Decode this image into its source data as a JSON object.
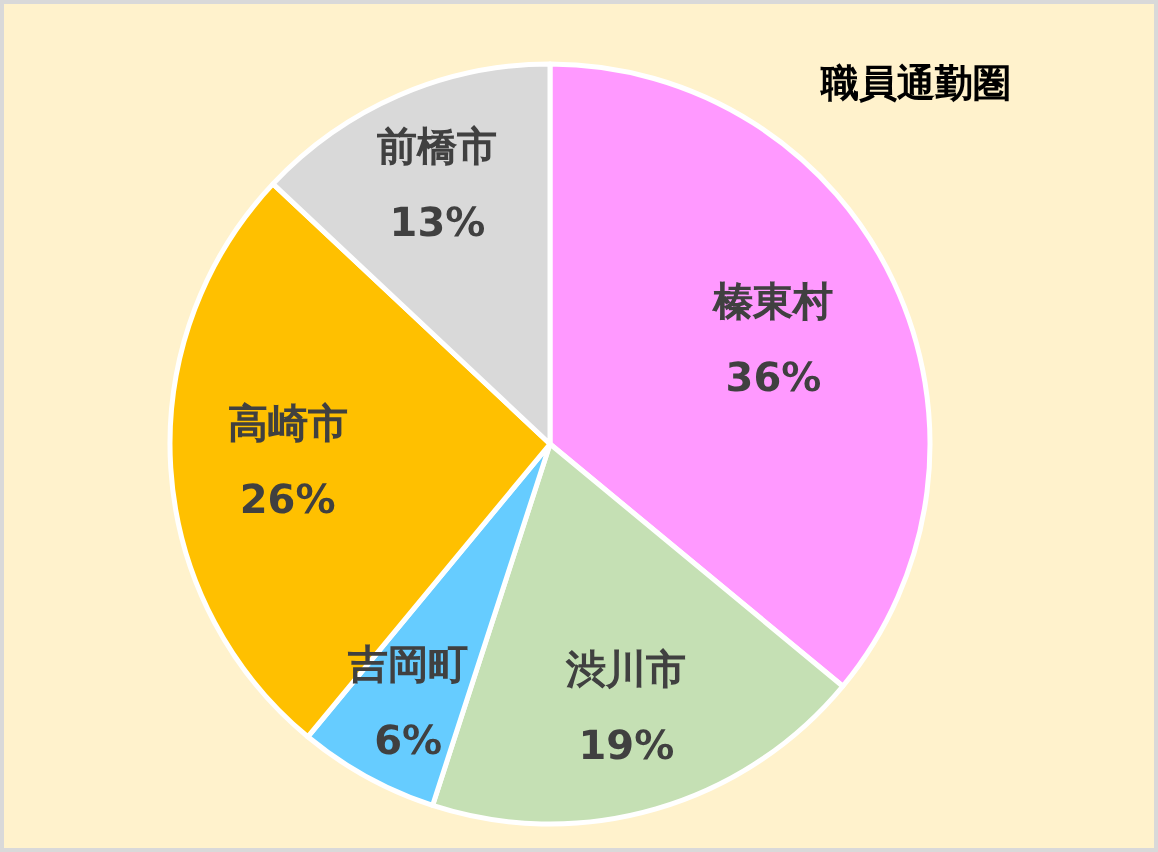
{
  "chart_data": {
    "type": "pie",
    "title": "職員通勤圏",
    "categories": [
      "榛東村",
      "渋川市",
      "吉岡町",
      "高崎市",
      "前橋市"
    ],
    "values": [
      36,
      19,
      6,
      26,
      13
    ],
    "colors": [
      "#ff99ff",
      "#c5e0b4",
      "#66ccff",
      "#ffc000",
      "#d9d9d9"
    ],
    "value_labels": [
      "36%",
      "19%",
      "6%",
      "26%",
      "13%"
    ]
  }
}
